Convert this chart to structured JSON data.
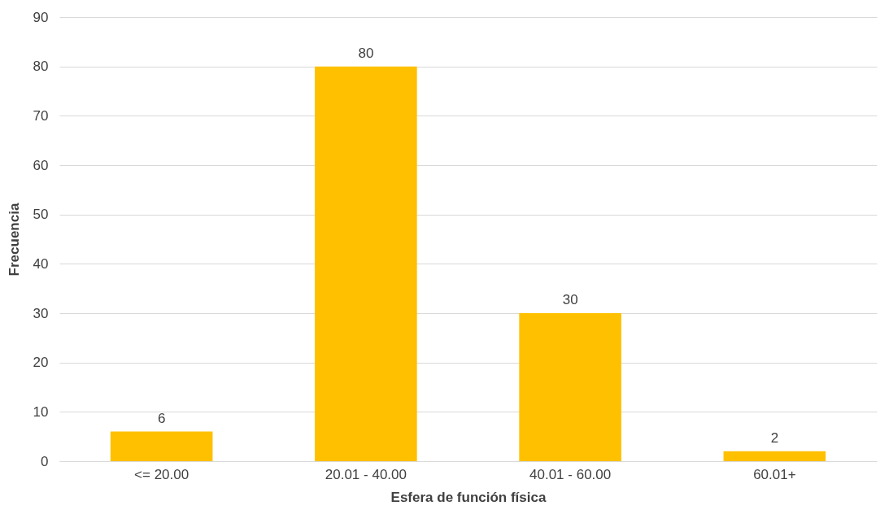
{
  "chart_data": {
    "type": "bar",
    "xlabel": "Esfera de función física",
    "ylabel": "Frecuencia",
    "categories": [
      "<= 20.00",
      "20.01 - 40.00",
      "40.01 - 60.00",
      "60.01+"
    ],
    "values": [
      6,
      80,
      30,
      2
    ],
    "color": "#ffc000",
    "ylim": [
      0,
      90
    ],
    "yticks": [
      0,
      10,
      20,
      30,
      40,
      50,
      60,
      70,
      80,
      90
    ],
    "grid": "y",
    "data_labels": true
  }
}
